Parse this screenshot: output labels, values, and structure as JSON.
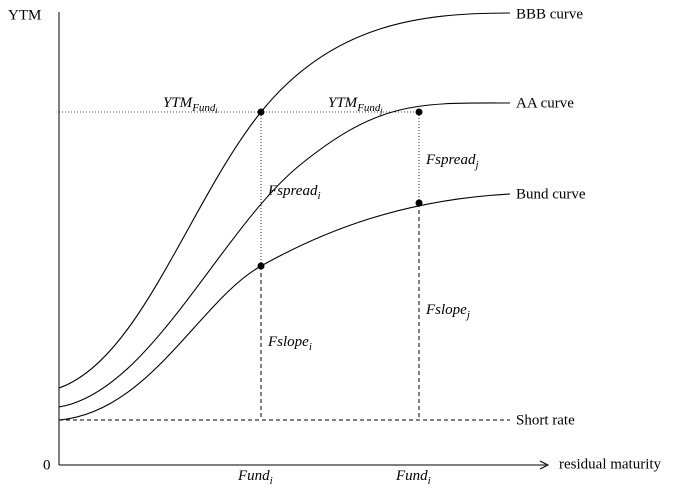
{
  "axes": {
    "y_label": "YTM",
    "origin": "0",
    "x_label": "residual maturity"
  },
  "curves": {
    "bbb": "BBB curve",
    "aa": "AA curve",
    "bund": "Bund curve",
    "short": "Short rate"
  },
  "annotations": {
    "ytm_i": {
      "base": "YTM",
      "sub": "Fund",
      "subsub": "i"
    },
    "ytm_j": {
      "base": "YTM",
      "sub": "Fund",
      "subsub": "j"
    },
    "spread_i": {
      "base": "Fspread",
      "sub": "i"
    },
    "spread_j": {
      "base": "Fspread",
      "sub": "j"
    },
    "slope_i": {
      "base": "Fslope",
      "sub": "i"
    },
    "slope_j": {
      "base": "Fslope",
      "sub": "j"
    },
    "fund_1": {
      "base": "Fund",
      "sub": "i"
    },
    "fund_2": {
      "base": "Fund",
      "sub": "i"
    }
  }
}
